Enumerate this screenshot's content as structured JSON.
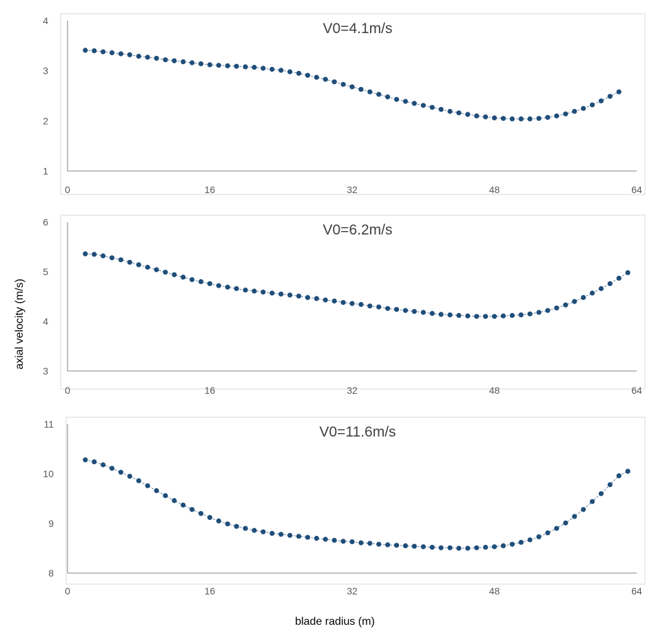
{
  "figure": {
    "ylabel": "axial velocity (m/s)",
    "xlabel": "blade radius (m)",
    "marker_color": "#1f4e79",
    "line_color": "#5b7fa6",
    "frame_color": "#d9d9d9"
  },
  "chart_data": [
    {
      "type": "scatter",
      "title": "V0=4.1m/s",
      "xlim": [
        0,
        64
      ],
      "ylim": [
        1,
        4
      ],
      "xticks": [
        "0",
        "16",
        "32",
        "48",
        "64"
      ],
      "yticks": [
        "1",
        "2",
        "3",
        "4"
      ],
      "grid": false,
      "series": [
        {
          "x": [
            2.0,
            3.0,
            4.0,
            5.0,
            6.0,
            7.0,
            8.0,
            9.0,
            10.0,
            11.0,
            12.0,
            13.0,
            14.0,
            15.0,
            16.0,
            17.0,
            18.0,
            19.0,
            20.0,
            21.0,
            22.0,
            23.0,
            24.0,
            25.0,
            26.0,
            27.0,
            28.0,
            29.0,
            30.0,
            31.0,
            32.0,
            33.0,
            34.0,
            35.0,
            36.0,
            37.0,
            38.0,
            39.0,
            40.0,
            41.0,
            42.0,
            43.0,
            44.0,
            45.0,
            46.0,
            47.0,
            48.0,
            49.0,
            50.0,
            51.0,
            52.0,
            53.0,
            54.0,
            55.0,
            56.0,
            57.0,
            58.0,
            59.0,
            60.0,
            61.0,
            62.0
          ],
          "values": [
            3.41,
            3.4,
            3.38,
            3.36,
            3.34,
            3.32,
            3.29,
            3.27,
            3.25,
            3.22,
            3.2,
            3.18,
            3.16,
            3.14,
            3.12,
            3.11,
            3.1,
            3.09,
            3.08,
            3.07,
            3.05,
            3.03,
            3.01,
            2.98,
            2.95,
            2.91,
            2.87,
            2.83,
            2.78,
            2.73,
            2.68,
            2.63,
            2.58,
            2.53,
            2.48,
            2.43,
            2.39,
            2.35,
            2.31,
            2.27,
            2.23,
            2.19,
            2.16,
            2.13,
            2.1,
            2.08,
            2.06,
            2.05,
            2.04,
            2.04,
            2.04,
            2.05,
            2.07,
            2.1,
            2.14,
            2.19,
            2.25,
            2.32,
            2.4,
            2.49,
            2.58
          ]
        }
      ]
    },
    {
      "type": "scatter",
      "title": "V0=6.2m/s",
      "xlim": [
        0,
        64
      ],
      "ylim": [
        3,
        6
      ],
      "xticks": [
        "0",
        "16",
        "32",
        "48",
        "64"
      ],
      "yticks": [
        "3",
        "4",
        "5",
        "6"
      ],
      "grid": false,
      "series": [
        {
          "x": [
            2.0,
            3.0,
            4.0,
            5.0,
            6.0,
            7.0,
            8.0,
            9.0,
            10.0,
            11.0,
            12.0,
            13.0,
            14.0,
            15.0,
            16.0,
            17.0,
            18.0,
            19.0,
            20.0,
            21.0,
            22.0,
            23.0,
            24.0,
            25.0,
            26.0,
            27.0,
            28.0,
            29.0,
            30.0,
            31.0,
            32.0,
            33.0,
            34.0,
            35.0,
            36.0,
            37.0,
            38.0,
            39.0,
            40.0,
            41.0,
            42.0,
            43.0,
            44.0,
            45.0,
            46.0,
            47.0,
            48.0,
            49.0,
            50.0,
            51.0,
            52.0,
            53.0,
            54.0,
            55.0,
            56.0,
            57.0,
            58.0,
            59.0,
            60.0,
            61.0,
            62.0,
            63.0
          ],
          "values": [
            5.36,
            5.35,
            5.32,
            5.28,
            5.24,
            5.19,
            5.14,
            5.09,
            5.04,
            4.99,
            4.94,
            4.89,
            4.84,
            4.8,
            4.76,
            4.72,
            4.69,
            4.66,
            4.63,
            4.61,
            4.59,
            4.57,
            4.55,
            4.53,
            4.51,
            4.48,
            4.46,
            4.43,
            4.41,
            4.38,
            4.36,
            4.34,
            4.31,
            4.29,
            4.26,
            4.24,
            4.22,
            4.2,
            4.18,
            4.16,
            4.14,
            4.13,
            4.12,
            4.11,
            4.1,
            4.1,
            4.1,
            4.11,
            4.12,
            4.13,
            4.15,
            4.18,
            4.22,
            4.27,
            4.33,
            4.4,
            4.48,
            4.57,
            4.66,
            4.76,
            4.87,
            4.98
          ]
        }
      ]
    },
    {
      "type": "scatter",
      "title": "V0=11.6m/s",
      "xlim": [
        0,
        64
      ],
      "ylim": [
        8,
        11
      ],
      "xticks": [
        "0",
        "16",
        "32",
        "48",
        "64"
      ],
      "yticks": [
        "8",
        "9",
        "10",
        "11"
      ],
      "grid": false,
      "series": [
        {
          "x": [
            2.0,
            3.0,
            4.0,
            5.0,
            6.0,
            7.0,
            8.0,
            9.0,
            10.0,
            11.0,
            12.0,
            13.0,
            14.0,
            15.0,
            16.0,
            17.0,
            18.0,
            19.0,
            20.0,
            21.0,
            22.0,
            23.0,
            24.0,
            25.0,
            26.0,
            27.0,
            28.0,
            29.0,
            30.0,
            31.0,
            32.0,
            33.0,
            34.0,
            35.0,
            36.0,
            37.0,
            38.0,
            39.0,
            40.0,
            41.0,
            42.0,
            43.0,
            44.0,
            45.0,
            46.0,
            47.0,
            48.0,
            49.0,
            50.0,
            51.0,
            52.0,
            53.0,
            54.0,
            55.0,
            56.0,
            57.0,
            58.0,
            59.0,
            60.0,
            61.0,
            62.0,
            63.0
          ],
          "values": [
            10.28,
            10.24,
            10.18,
            10.11,
            10.03,
            9.95,
            9.86,
            9.76,
            9.66,
            9.56,
            9.46,
            9.37,
            9.28,
            9.2,
            9.12,
            9.05,
            8.99,
            8.94,
            8.9,
            8.86,
            8.83,
            8.8,
            8.78,
            8.76,
            8.74,
            8.72,
            8.7,
            8.68,
            8.66,
            8.64,
            8.63,
            8.61,
            8.6,
            8.58,
            8.57,
            8.56,
            8.55,
            8.54,
            8.53,
            8.52,
            8.51,
            8.51,
            8.5,
            8.5,
            8.51,
            8.52,
            8.53,
            8.55,
            8.58,
            8.62,
            8.67,
            8.73,
            8.81,
            8.9,
            9.01,
            9.14,
            9.28,
            9.44,
            9.6,
            9.78,
            9.96,
            10.05
          ]
        }
      ]
    }
  ]
}
